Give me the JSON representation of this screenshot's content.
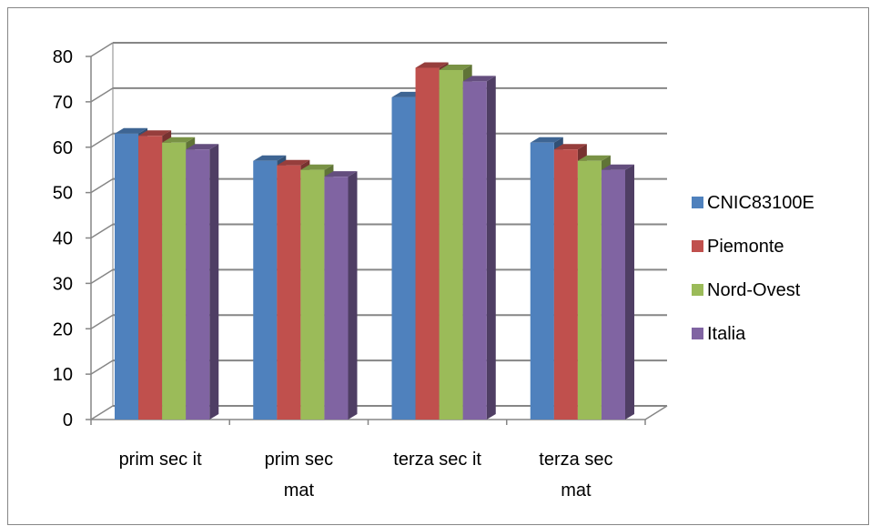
{
  "chart_data": {
    "type": "bar",
    "categories": [
      "prim sec it",
      "prim sec mat",
      "terza sec it",
      "terza sec mat"
    ],
    "series": [
      {
        "name": "CNIC83100E",
        "values": [
          63,
          57,
          71,
          61
        ],
        "color": "#4F81BD"
      },
      {
        "name": "Piemonte",
        "values": [
          62.5,
          56,
          77.5,
          59.5
        ],
        "color": "#C0504D"
      },
      {
        "name": "Nord-Ovest",
        "values": [
          61,
          55,
          77,
          57
        ],
        "color": "#9BBB59"
      },
      {
        "name": "Italia",
        "values": [
          59.5,
          53.5,
          74.5,
          55
        ],
        "color": "#8064A2"
      }
    ],
    "ylim": [
      0,
      80
    ],
    "yticks": [
      0,
      10,
      20,
      30,
      40,
      50,
      60,
      70,
      80
    ],
    "category_label_lines": [
      [
        "prim sec it"
      ],
      [
        "prim sec",
        "mat"
      ],
      [
        "terza sec it"
      ],
      [
        "terza sec",
        "mat"
      ]
    ],
    "grid": true,
    "legend_position": "right",
    "style": "3d-clustered-column"
  }
}
